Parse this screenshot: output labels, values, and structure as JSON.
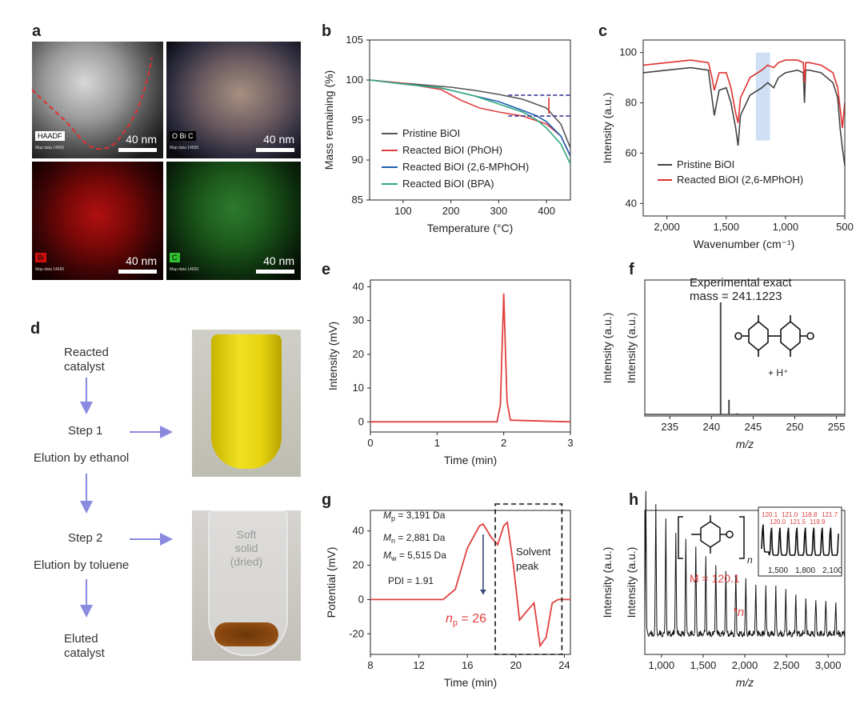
{
  "panels": {
    "a": "a",
    "b": "b",
    "c": "c",
    "d": "d",
    "e": "e",
    "f": "f",
    "g": "g",
    "h": "h"
  },
  "panel_a": {
    "tiles": [
      {
        "label": "HAADF",
        "scale": "40 nm",
        "map": "Map data 14650"
      },
      {
        "label": "O Bi C",
        "scale": "40 nm",
        "map": "Map data 14650"
      },
      {
        "label": "Bi",
        "scale": "40 nm",
        "map": "Map data 14650"
      },
      {
        "label": "C",
        "scale": "40 nm",
        "map": "Map data 14650"
      }
    ],
    "colors": {
      "haadf_outline": "#e03030",
      "bi": "#d01010",
      "c": "#30b030"
    }
  },
  "panel_d": {
    "reacted": "Reacted\ncatalyst",
    "reacted_l1": "Reacted",
    "reacted_l2": "catalyst",
    "step1": "Step 1",
    "elution1": "Elution by ethanol",
    "step2": "Step 2",
    "elution2": "Elution by toluene",
    "eluted_l1": "Eluted",
    "eluted_l2": "catalyst",
    "photo2_l1": "Soft",
    "photo2_l2": "solid",
    "photo2_l3": "(dried)",
    "arrow_color": "#8a8ae0"
  },
  "chart_data": [
    {
      "id": "b",
      "type": "line",
      "xlabel": "Temperature (°C)",
      "ylabel": "Mass remaining (%)",
      "xlim": [
        30,
        450
      ],
      "ylim": [
        85,
        105
      ],
      "xticks": [
        100,
        200,
        300,
        400
      ],
      "yticks": [
        85,
        90,
        95,
        100,
        105
      ],
      "series": [
        {
          "name": "Pristine BiOI",
          "color": "#555555",
          "x": [
            30,
            100,
            200,
            250,
            300,
            350,
            400,
            430,
            450
          ],
          "y": [
            100,
            99.6,
            99.1,
            98.7,
            98.2,
            97.6,
            96.5,
            94.5,
            91.5
          ]
        },
        {
          "name": "Reacted BiOI (PhOH)",
          "color": "#e04040",
          "x": [
            30,
            100,
            180,
            220,
            260,
            300,
            350,
            400,
            430,
            450
          ],
          "y": [
            100,
            99.6,
            98.8,
            97.5,
            96.5,
            96.0,
            95.5,
            94.5,
            93.0,
            90.5
          ]
        },
        {
          "name": "Reacted BiOI (2,6-MPhOH)",
          "color": "#2060b0",
          "x": [
            30,
            100,
            180,
            250,
            300,
            350,
            380,
            400,
            430,
            450
          ],
          "y": [
            100,
            99.5,
            99.0,
            98.0,
            97.3,
            96.2,
            95.5,
            94.8,
            93.0,
            90.5
          ]
        },
        {
          "name": "Reacted BiOI (BPA)",
          "color": "#30a880",
          "x": [
            30,
            100,
            180,
            250,
            300,
            350,
            380,
            400,
            430,
            450
          ],
          "y": [
            100,
            99.5,
            99.0,
            98.0,
            97.0,
            96.0,
            95.0,
            94.0,
            92.0,
            89.5
          ]
        }
      ],
      "dashed_lines": [
        98.1,
        95.5
      ],
      "legend": "center-left"
    },
    {
      "id": "c",
      "type": "line",
      "xlabel": "Wavenumber (cm⁻¹)",
      "ylabel": "Intensity (a.u.)",
      "xlim": [
        2200,
        500
      ],
      "ylim": [
        35,
        105
      ],
      "reversed_x": true,
      "xticks": [
        2000,
        1500,
        1000,
        500
      ],
      "xticklabels": [
        "2,000",
        "1,500",
        "1,000",
        "500"
      ],
      "yticks": [
        40,
        60,
        80,
        100
      ],
      "highlight_band": [
        1250,
        1130
      ],
      "series": [
        {
          "name": "Pristine BiOI",
          "color": "#444444",
          "x": [
            2200,
            2000,
            1800,
            1650,
            1620,
            1600,
            1560,
            1500,
            1460,
            1420,
            1400,
            1380,
            1300,
            1200,
            1150,
            1100,
            1060,
            1000,
            900,
            850,
            840,
            830,
            800,
            700,
            600,
            560,
            540,
            520,
            500
          ],
          "y": [
            92,
            93,
            94,
            93,
            82,
            75,
            85,
            86,
            80,
            70,
            63,
            75,
            83,
            86,
            88,
            86,
            90,
            92,
            93,
            92,
            80,
            93,
            93,
            92,
            88,
            82,
            70,
            62,
            55
          ]
        },
        {
          "name": "Reacted BiOI (2,6-MPhOH)",
          "color": "#e03030",
          "x": [
            2200,
            2000,
            1800,
            1650,
            1620,
            1600,
            1560,
            1500,
            1460,
            1420,
            1400,
            1380,
            1300,
            1200,
            1150,
            1100,
            1060,
            1000,
            900,
            850,
            840,
            830,
            800,
            700,
            600,
            560,
            540,
            520,
            500
          ],
          "y": [
            95,
            96,
            97,
            96,
            90,
            85,
            92,
            92,
            86,
            76,
            72,
            82,
            90,
            93,
            95,
            94,
            96,
            97,
            97,
            96,
            88,
            96,
            96,
            95,
            92,
            86,
            78,
            70,
            80
          ]
        }
      ],
      "legend": "bottom-left"
    },
    {
      "id": "e",
      "type": "line",
      "xlabel": "Time (min)",
      "ylabel": "Intensity (mV)",
      "xlim": [
        0,
        3
      ],
      "ylim": [
        -3,
        42
      ],
      "xticks": [
        0,
        1,
        2,
        3
      ],
      "yticks": [
        0,
        10,
        20,
        30,
        40
      ],
      "series": [
        {
          "color": "#e04040",
          "x": [
            0,
            1.9,
            1.95,
            1.98,
            2.0,
            2.02,
            2.05,
            2.1,
            3
          ],
          "y": [
            0,
            0,
            5,
            25,
            38,
            25,
            6,
            0.5,
            0
          ]
        }
      ]
    },
    {
      "id": "f",
      "type": "bar",
      "xlabel": "m/z",
      "ylabel": "Intensity (a.u.)",
      "xlim": [
        232,
        256
      ],
      "xticks": [
        235,
        240,
        245,
        250,
        255
      ],
      "annotation_l1": "Experimental exact",
      "annotation_l2": "mass = 241.1223",
      "adduct": "+ H⁺",
      "peaks": [
        {
          "x": 241.1,
          "y": 1.0
        },
        {
          "x": 242.1,
          "y": 0.13
        },
        {
          "x": 243.1,
          "y": 0.01
        }
      ]
    },
    {
      "id": "g",
      "type": "line",
      "xlabel": "Time (min)",
      "ylabel": "Potential (mV)",
      "xlim": [
        8,
        24.5
      ],
      "ylim": [
        -32,
        52
      ],
      "xticks": [
        8,
        12,
        16,
        20,
        24
      ],
      "yticks": [
        -20,
        0,
        20,
        40
      ],
      "series": [
        {
          "color": "#e04040",
          "x": [
            8,
            14,
            15,
            16,
            17,
            17.3,
            18,
            18.5,
            19,
            19.3,
            19.8,
            20.3,
            21,
            21.5,
            22,
            22.5,
            23,
            23.5,
            24.5
          ],
          "y": [
            0,
            0,
            6,
            30,
            43,
            44,
            36,
            32,
            43,
            45,
            20,
            -12,
            -6,
            -2,
            -27,
            -22,
            -2,
            0,
            0
          ]
        }
      ],
      "stats_mp_label": "M",
      "stats_mp_sub": "p",
      "stats_mp_val": " = 3,191 Da",
      "stats_mn_label": "M",
      "stats_mn_sub": "n",
      "stats_mn_val": " = 2,881 Da",
      "stats_mw_label": "M",
      "stats_mw_sub": "w",
      "stats_mw_val": " = 5,515 Da",
      "pdi": "PDI = 1.91",
      "np_label": "n",
      "np_sub": "p",
      "np_val": " = 26",
      "solvent_l1": "Solvent",
      "solvent_l2": "peak"
    },
    {
      "id": "h",
      "type": "line",
      "xlabel": "m/z",
      "ylabel": "Intensity (a.u.)",
      "xlim": [
        800,
        3200
      ],
      "xticks": [
        1000,
        1500,
        2000,
        2500,
        3000
      ],
      "xticklabels": [
        "1,000",
        "1,500",
        "2,000",
        "2,500",
        "3,000"
      ],
      "repeat_unit": "M = 120.1",
      "n_label": "*n",
      "chain_n": "n",
      "inset_xticklabels": [
        "1,500",
        "1,800",
        "2,100"
      ],
      "inset_labels_top": [
        "120.1",
        "121.0",
        "118.8",
        "121.7"
      ],
      "inset_labels_bottom": [
        "120.0",
        "121.5",
        "119.9"
      ]
    }
  ]
}
